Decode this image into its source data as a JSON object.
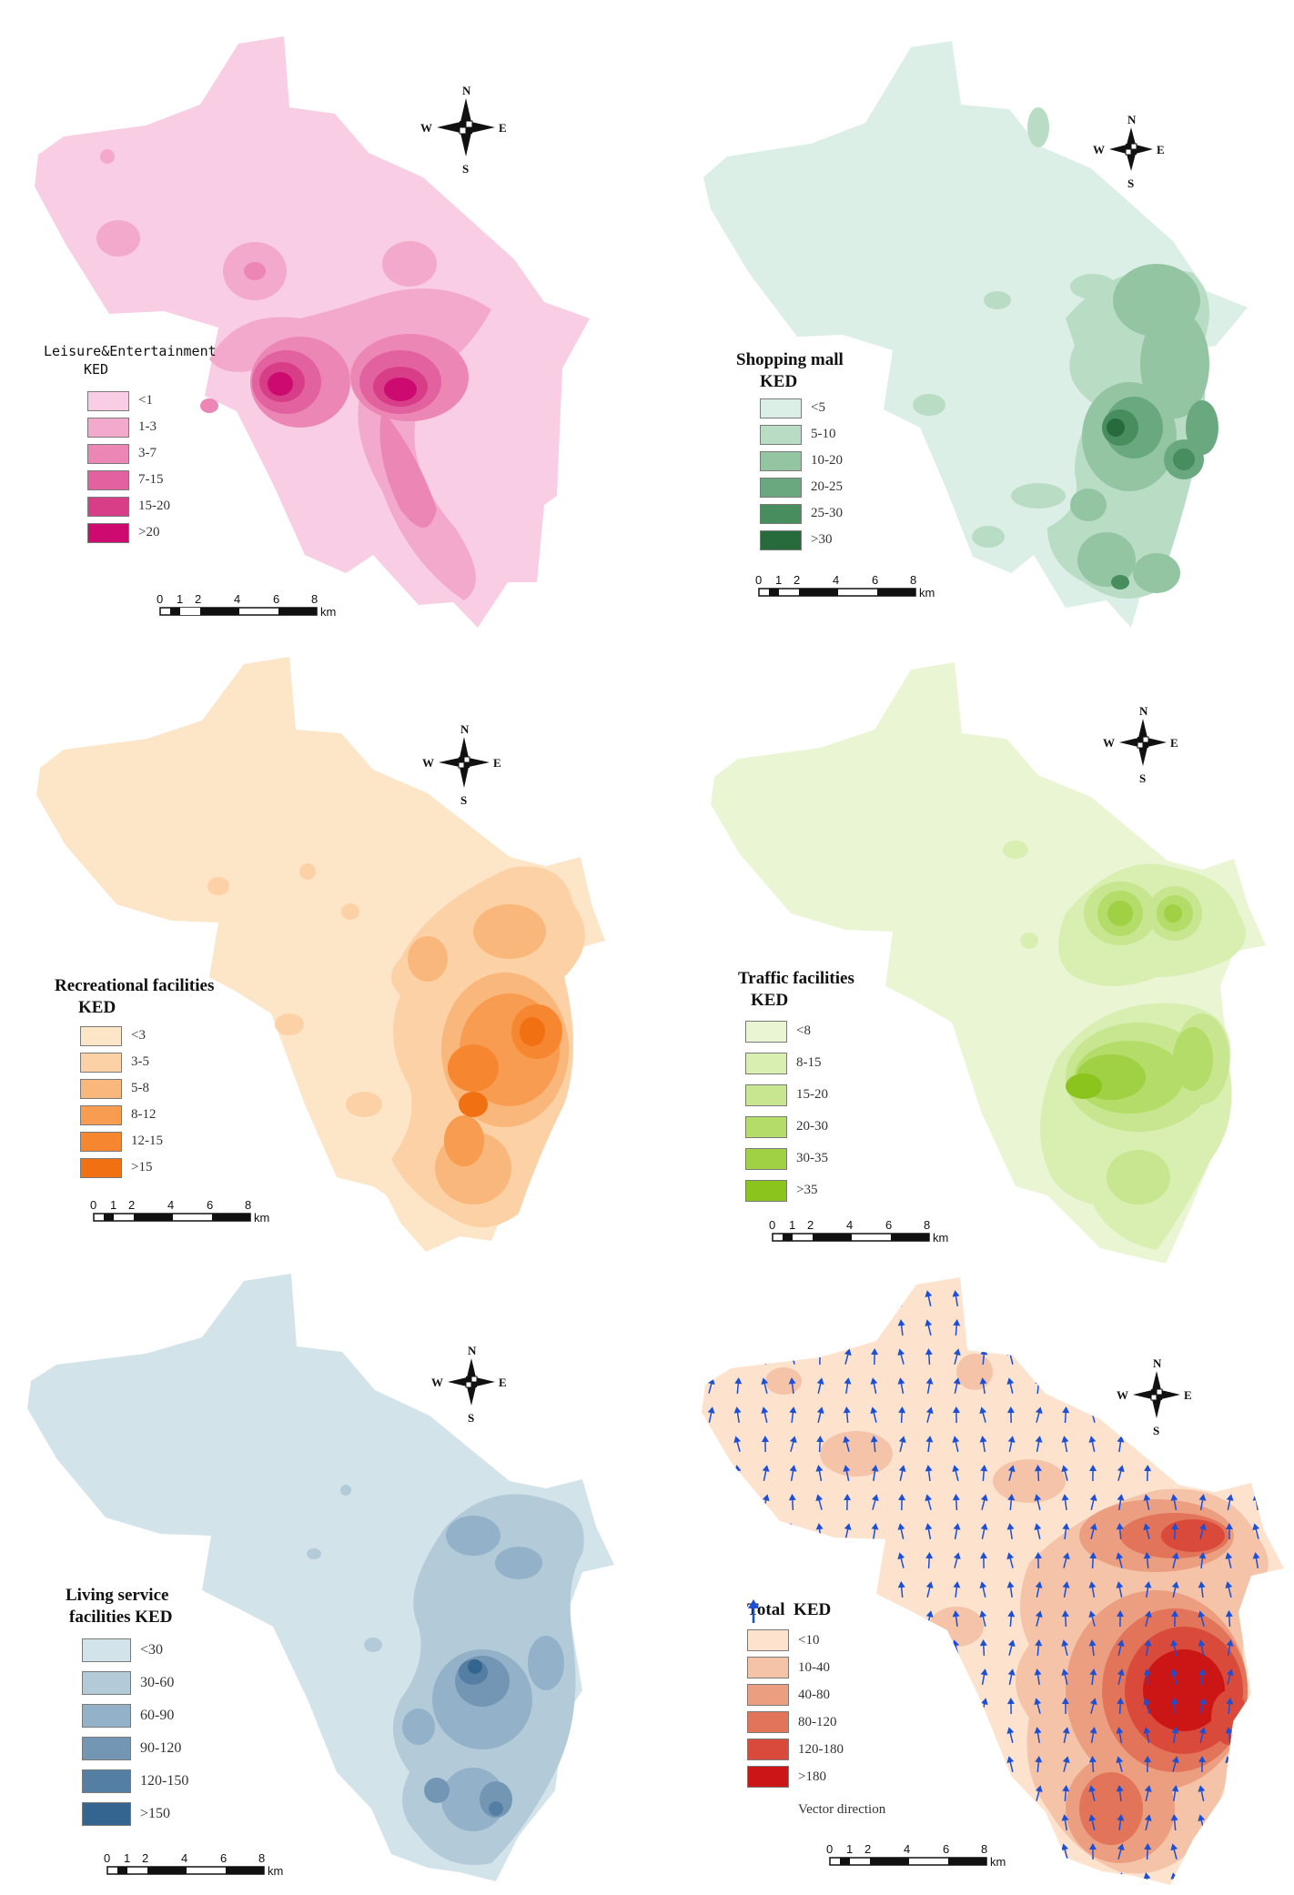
{
  "compass": {
    "n": "N",
    "s": "S",
    "e": "E",
    "w": "W"
  },
  "scale": {
    "ticks": [
      "0",
      "1",
      "2",
      "4",
      "6",
      "8"
    ],
    "unit": "km"
  },
  "panels": [
    {
      "id": "leisure",
      "title_lines": [
        "Leisure&Entertainment",
        "KED"
      ],
      "classes": [
        {
          "label": "<1",
          "color": "#f9cde3"
        },
        {
          "label": "1-3",
          "color": "#f3a9cb"
        },
        {
          "label": "3-7",
          "color": "#ec86b5"
        },
        {
          "label": "7-15",
          "color": "#e2629f"
        },
        {
          "label": "15-20",
          "color": "#d83e88"
        },
        {
          "label": ">20",
          "color": "#cc0a6f"
        }
      ]
    },
    {
      "id": "shopping",
      "title_lines": [
        "Shopping mall",
        "KED"
      ],
      "classes": [
        {
          "label": "<5",
          "color": "#dcefe6"
        },
        {
          "label": "5-10",
          "color": "#b9dcc5"
        },
        {
          "label": "10-20",
          "color": "#93c5a3"
        },
        {
          "label": "20-25",
          "color": "#6aa97f"
        },
        {
          "label": "25-30",
          "color": "#478d5e"
        },
        {
          "label": ">30",
          "color": "#276b3d"
        }
      ]
    },
    {
      "id": "recreational",
      "title_lines": [
        "Recreational facilities",
        "KED"
      ],
      "classes": [
        {
          "label": "<3",
          "color": "#fde5c8"
        },
        {
          "label": "3-5",
          "color": "#fcd1a5"
        },
        {
          "label": "5-8",
          "color": "#fab77b"
        },
        {
          "label": "8-12",
          "color": "#f89c52"
        },
        {
          "label": "12-15",
          "color": "#f6862f"
        },
        {
          "label": ">15",
          "color": "#f07012"
        }
      ]
    },
    {
      "id": "traffic",
      "title_lines": [
        "Traffic facilities",
        "KED"
      ],
      "classes": [
        {
          "label": "<8",
          "color": "#eaf6d3"
        },
        {
          "label": "8-15",
          "color": "#d9efb2"
        },
        {
          "label": "15-20",
          "color": "#c7e68f"
        },
        {
          "label": "20-30",
          "color": "#b4dc69"
        },
        {
          "label": "30-35",
          "color": "#a0d043"
        },
        {
          "label": ">35",
          "color": "#8ac41d"
        }
      ]
    },
    {
      "id": "living",
      "title_lines": [
        "Living service",
        "facilities KED"
      ],
      "classes": [
        {
          "label": "<30",
          "color": "#d3e3ea"
        },
        {
          "label": "30-60",
          "color": "#b3cbd9"
        },
        {
          "label": "60-90",
          "color": "#93b1c8"
        },
        {
          "label": "90-120",
          "color": "#7396b5"
        },
        {
          "label": "120-150",
          "color": "#547ea3"
        },
        {
          "label": ">150",
          "color": "#346591"
        }
      ]
    },
    {
      "id": "total",
      "title_lines": [
        "Total  KED"
      ],
      "classes": [
        {
          "label": "<10",
          "color": "#fde3cd"
        },
        {
          "label": "10-40",
          "color": "#f4c3a8"
        },
        {
          "label": "40-80",
          "color": "#ec9e80"
        },
        {
          "label": "80-120",
          "color": "#e2745a"
        },
        {
          "label": "120-180",
          "color": "#d94a3b"
        },
        {
          "label": ">180",
          "color": "#cc1616"
        }
      ],
      "vector_label": "Vector direction",
      "vector_color": "#1a4fd6"
    }
  ]
}
